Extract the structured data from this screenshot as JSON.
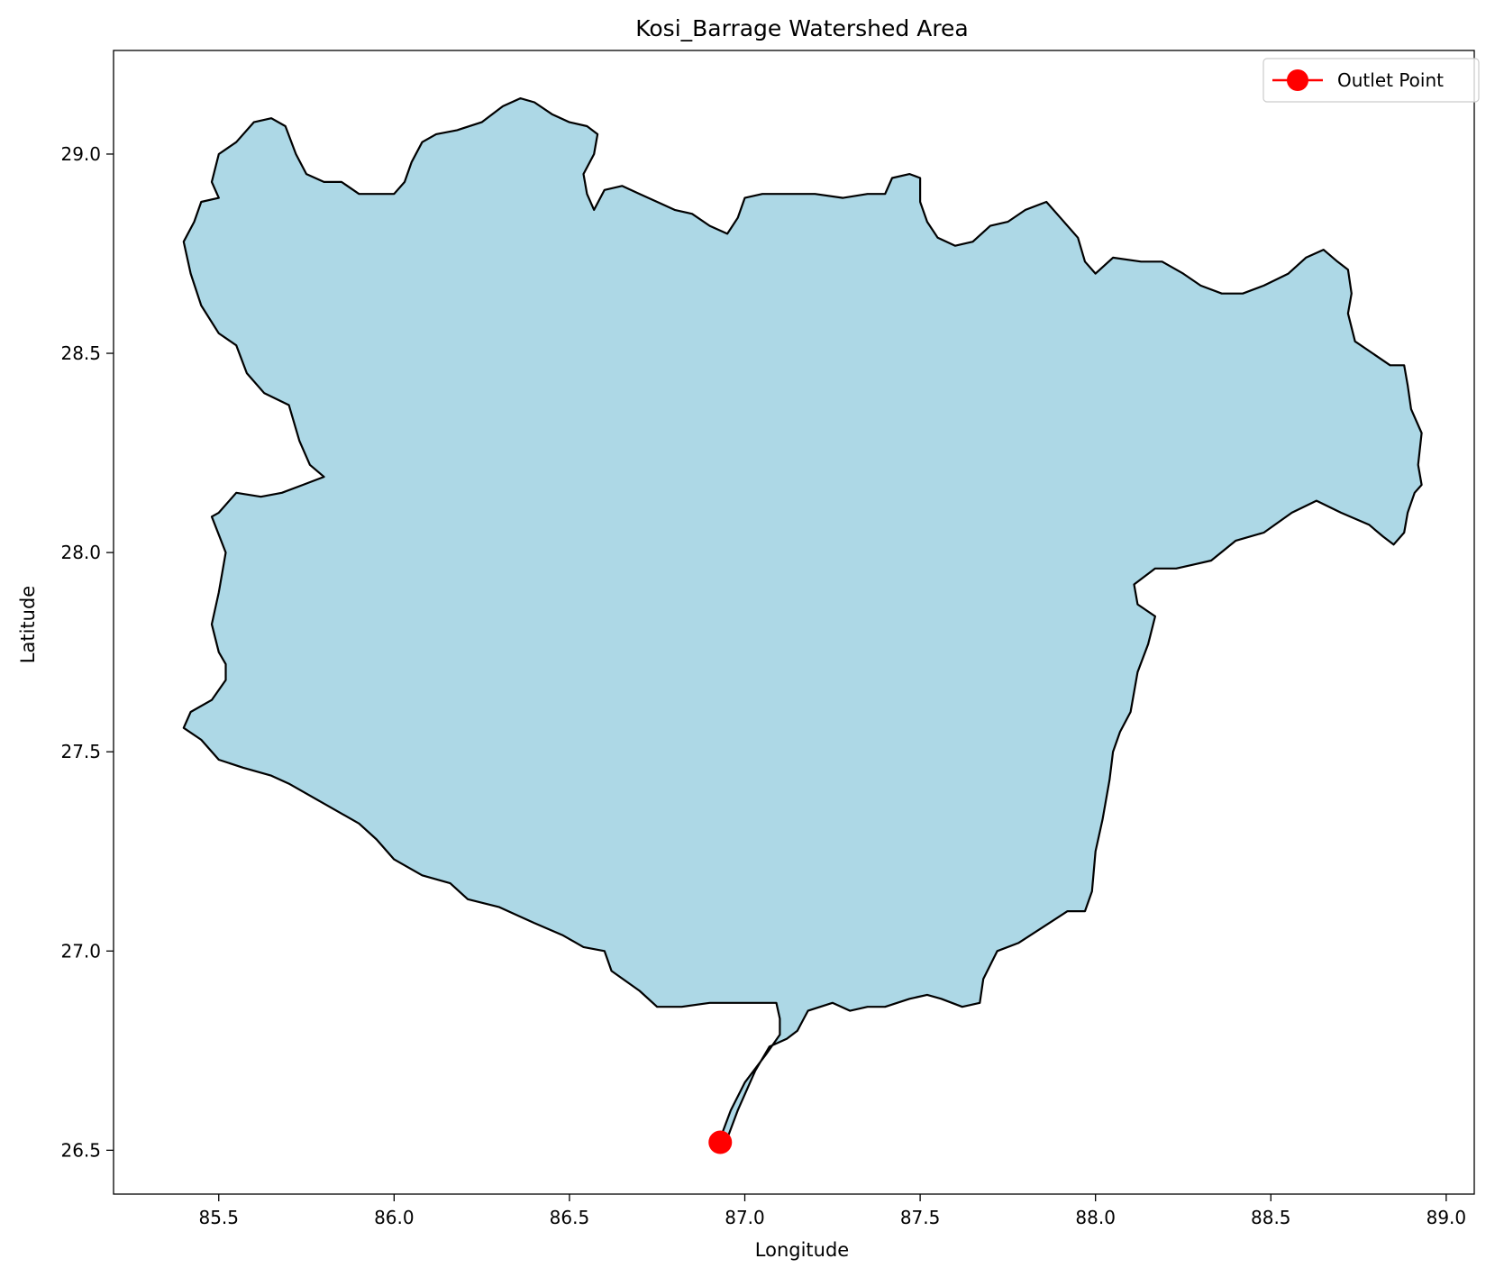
{
  "chart_data": {
    "type": "map",
    "title": "Kosi_Barrage Watershed Area",
    "xlabel": "Longitude",
    "ylabel": "Latitude",
    "xlim": [
      85.2,
      89.08
    ],
    "ylim": [
      26.39,
      29.26
    ],
    "xticks": [
      85.5,
      86.0,
      86.5,
      87.0,
      87.5,
      88.0,
      88.5,
      89.0
    ],
    "yticks": [
      26.5,
      27.0,
      27.5,
      28.0,
      28.5,
      29.0
    ],
    "xtick_labels": [
      "85.5",
      "86.0",
      "86.5",
      "87.0",
      "87.5",
      "88.0",
      "88.5",
      "89.0"
    ],
    "ytick_labels": [
      "26.5",
      "27.0",
      "27.5",
      "28.0",
      "28.5",
      "29.0"
    ],
    "grid": false,
    "legend": {
      "position": "top-right",
      "entries": [
        "Outlet Point"
      ]
    },
    "watershed": {
      "fill": "#add8e6",
      "edge": "#000000",
      "boundary": [
        [
          86.95,
          26.53
        ],
        [
          86.98,
          26.6
        ],
        [
          87.03,
          26.7
        ],
        [
          87.07,
          26.76
        ],
        [
          87.12,
          26.78
        ],
        [
          87.15,
          26.8
        ],
        [
          87.18,
          26.85
        ],
        [
          87.25,
          26.87
        ],
        [
          87.3,
          26.85
        ],
        [
          87.35,
          26.86
        ],
        [
          87.4,
          26.86
        ],
        [
          87.47,
          26.88
        ],
        [
          87.52,
          26.89
        ],
        [
          87.56,
          26.88
        ],
        [
          87.62,
          26.86
        ],
        [
          87.67,
          26.87
        ],
        [
          87.68,
          26.93
        ],
        [
          87.72,
          27.0
        ],
        [
          87.78,
          27.02
        ],
        [
          87.85,
          27.06
        ],
        [
          87.92,
          27.1
        ],
        [
          87.97,
          27.1
        ],
        [
          87.99,
          27.15
        ],
        [
          88.0,
          27.25
        ],
        [
          88.02,
          27.33
        ],
        [
          88.04,
          27.43
        ],
        [
          88.05,
          27.5
        ],
        [
          88.07,
          27.55
        ],
        [
          88.1,
          27.6
        ],
        [
          88.12,
          27.7
        ],
        [
          88.15,
          27.77
        ],
        [
          88.17,
          27.84
        ],
        [
          88.12,
          27.87
        ],
        [
          88.11,
          27.92
        ],
        [
          88.17,
          27.96
        ],
        [
          88.23,
          27.96
        ],
        [
          88.28,
          27.97
        ],
        [
          88.33,
          27.98
        ],
        [
          88.4,
          28.03
        ],
        [
          88.48,
          28.05
        ],
        [
          88.56,
          28.1
        ],
        [
          88.63,
          28.13
        ],
        [
          88.7,
          28.1
        ],
        [
          88.78,
          28.07
        ],
        [
          88.82,
          28.04
        ],
        [
          88.85,
          28.02
        ],
        [
          88.88,
          28.05
        ],
        [
          88.89,
          28.1
        ],
        [
          88.91,
          28.15
        ],
        [
          88.93,
          28.17
        ],
        [
          88.92,
          28.22
        ],
        [
          88.93,
          28.3
        ],
        [
          88.9,
          28.36
        ],
        [
          88.89,
          28.42
        ],
        [
          88.88,
          28.47
        ],
        [
          88.84,
          28.47
        ],
        [
          88.79,
          28.5
        ],
        [
          88.74,
          28.53
        ],
        [
          88.72,
          28.6
        ],
        [
          88.73,
          28.65
        ],
        [
          88.72,
          28.71
        ],
        [
          88.69,
          28.73
        ],
        [
          88.65,
          28.76
        ],
        [
          88.6,
          28.74
        ],
        [
          88.55,
          28.7
        ],
        [
          88.48,
          28.67
        ],
        [
          88.42,
          28.65
        ],
        [
          88.36,
          28.65
        ],
        [
          88.3,
          28.67
        ],
        [
          88.25,
          28.7
        ],
        [
          88.19,
          28.73
        ],
        [
          88.13,
          28.73
        ],
        [
          88.05,
          28.74
        ],
        [
          88.0,
          28.7
        ],
        [
          87.97,
          28.73
        ],
        [
          87.95,
          28.79
        ],
        [
          87.9,
          28.84
        ],
        [
          87.86,
          28.88
        ],
        [
          87.8,
          28.86
        ],
        [
          87.75,
          28.83
        ],
        [
          87.7,
          28.82
        ],
        [
          87.65,
          28.78
        ],
        [
          87.6,
          28.77
        ],
        [
          87.55,
          28.79
        ],
        [
          87.52,
          28.83
        ],
        [
          87.5,
          28.88
        ],
        [
          87.5,
          28.94
        ],
        [
          87.47,
          28.95
        ],
        [
          87.42,
          28.94
        ],
        [
          87.4,
          28.9
        ],
        [
          87.35,
          28.9
        ],
        [
          87.28,
          28.89
        ],
        [
          87.2,
          28.9
        ],
        [
          87.12,
          28.9
        ],
        [
          87.05,
          28.9
        ],
        [
          87.0,
          28.89
        ],
        [
          86.98,
          28.84
        ],
        [
          86.95,
          28.8
        ],
        [
          86.9,
          28.82
        ],
        [
          86.85,
          28.85
        ],
        [
          86.8,
          28.86
        ],
        [
          86.75,
          28.88
        ],
        [
          86.7,
          28.9
        ],
        [
          86.65,
          28.92
        ],
        [
          86.6,
          28.91
        ],
        [
          86.57,
          28.86
        ],
        [
          86.55,
          28.9
        ],
        [
          86.54,
          28.95
        ],
        [
          86.57,
          29.0
        ],
        [
          86.58,
          29.05
        ],
        [
          86.55,
          29.07
        ],
        [
          86.5,
          29.08
        ],
        [
          86.45,
          29.1
        ],
        [
          86.4,
          29.13
        ],
        [
          86.36,
          29.14
        ],
        [
          86.31,
          29.12
        ],
        [
          86.25,
          29.08
        ],
        [
          86.18,
          29.06
        ],
        [
          86.12,
          29.05
        ],
        [
          86.08,
          29.03
        ],
        [
          86.05,
          28.98
        ],
        [
          86.03,
          28.93
        ],
        [
          86.0,
          28.9
        ],
        [
          85.95,
          28.9
        ],
        [
          85.9,
          28.9
        ],
        [
          85.85,
          28.93
        ],
        [
          85.8,
          28.93
        ],
        [
          85.75,
          28.95
        ],
        [
          85.72,
          29.0
        ],
        [
          85.69,
          29.07
        ],
        [
          85.65,
          29.09
        ],
        [
          85.6,
          29.08
        ],
        [
          85.55,
          29.03
        ],
        [
          85.5,
          29.0
        ],
        [
          85.48,
          28.93
        ],
        [
          85.5,
          28.89
        ],
        [
          85.45,
          28.88
        ],
        [
          85.43,
          28.83
        ],
        [
          85.4,
          28.78
        ],
        [
          85.42,
          28.7
        ],
        [
          85.45,
          28.62
        ],
        [
          85.5,
          28.55
        ],
        [
          85.55,
          28.52
        ],
        [
          85.58,
          28.45
        ],
        [
          85.63,
          28.4
        ],
        [
          85.7,
          28.37
        ],
        [
          85.73,
          28.28
        ],
        [
          85.76,
          28.22
        ],
        [
          85.8,
          28.19
        ],
        [
          85.74,
          28.17
        ],
        [
          85.68,
          28.15
        ],
        [
          85.62,
          28.14
        ],
        [
          85.55,
          28.15
        ],
        [
          85.5,
          28.1
        ],
        [
          85.48,
          28.09
        ],
        [
          85.52,
          28.0
        ],
        [
          85.5,
          27.9
        ],
        [
          85.48,
          27.82
        ],
        [
          85.5,
          27.75
        ],
        [
          85.52,
          27.72
        ],
        [
          85.52,
          27.68
        ],
        [
          85.48,
          27.63
        ],
        [
          85.42,
          27.6
        ],
        [
          85.4,
          27.56
        ],
        [
          85.45,
          27.53
        ],
        [
          85.5,
          27.48
        ],
        [
          85.57,
          27.46
        ],
        [
          85.65,
          27.44
        ],
        [
          85.7,
          27.42
        ],
        [
          85.8,
          27.37
        ],
        [
          85.9,
          27.32
        ],
        [
          85.95,
          27.28
        ],
        [
          86.0,
          27.23
        ],
        [
          86.08,
          27.19
        ],
        [
          86.16,
          27.17
        ],
        [
          86.21,
          27.13
        ],
        [
          86.3,
          27.11
        ],
        [
          86.4,
          27.07
        ],
        [
          86.48,
          27.04
        ],
        [
          86.54,
          27.01
        ],
        [
          86.6,
          27.0
        ],
        [
          86.62,
          26.95
        ],
        [
          86.7,
          26.9
        ],
        [
          86.75,
          26.86
        ],
        [
          86.82,
          26.86
        ],
        [
          86.9,
          26.87
        ],
        [
          86.98,
          26.87
        ],
        [
          87.09,
          26.87
        ],
        [
          87.1,
          26.83
        ],
        [
          87.1,
          26.79
        ],
        [
          87.06,
          26.74
        ],
        [
          87.0,
          26.67
        ],
        [
          86.96,
          26.6
        ],
        [
          86.93,
          26.53
        ]
      ]
    },
    "series": [
      {
        "name": "Outlet Point",
        "color": "#ff0000",
        "marker": "circle",
        "points": [
          [
            86.93,
            26.52
          ]
        ]
      }
    ]
  }
}
